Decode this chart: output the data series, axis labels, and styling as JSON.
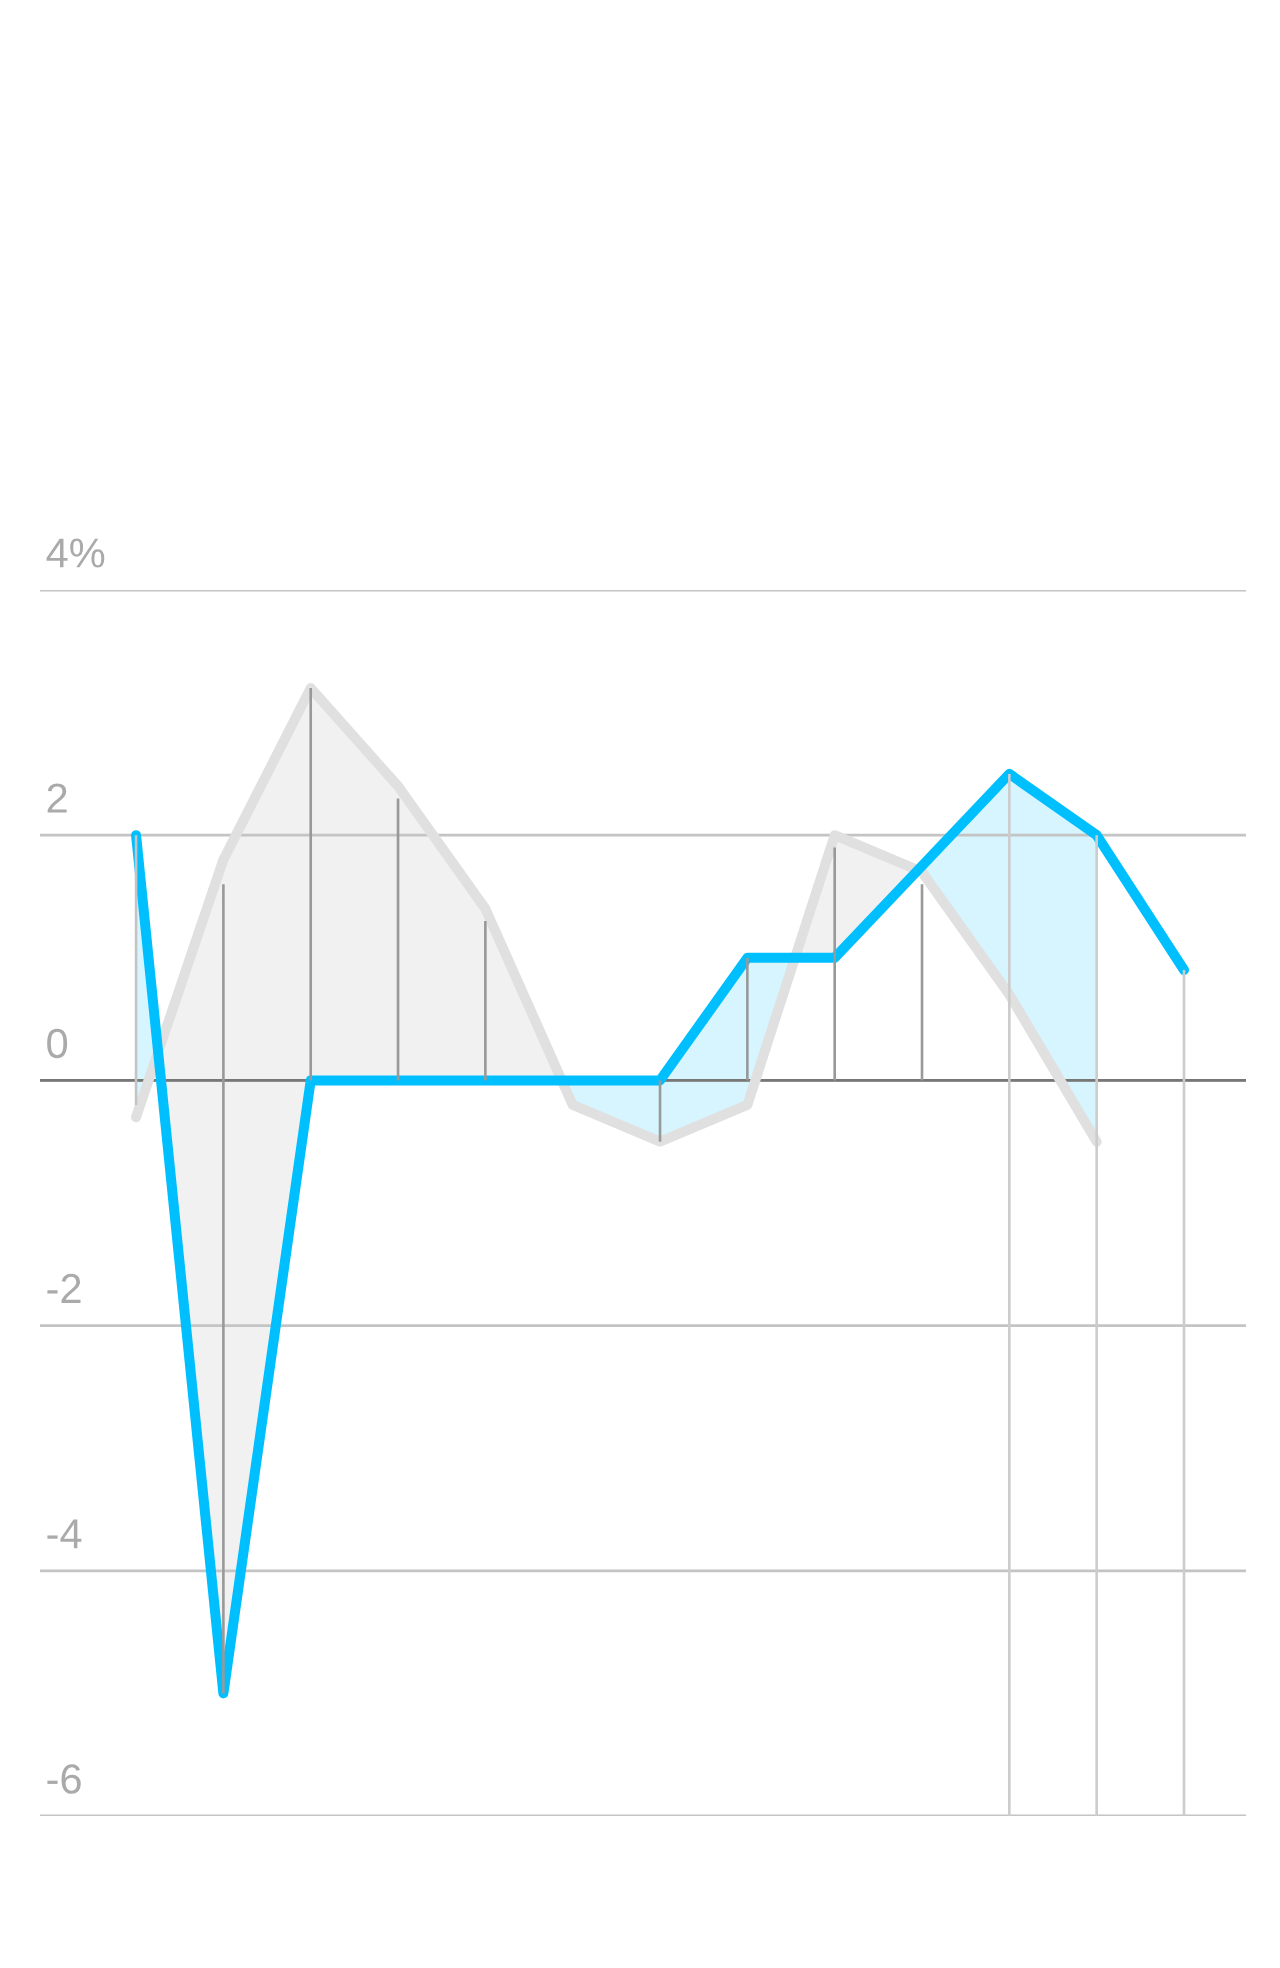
{
  "chart_data": {
    "type": "line",
    "categories": [
      null,
      null,
      null,
      null,
      null,
      null,
      null,
      null,
      null,
      null,
      null,
      null,
      null
    ],
    "ylim": [
      -6,
      4
    ],
    "yticks": [
      {
        "value": 4,
        "label": "4%"
      },
      2,
      0,
      -2,
      -4,
      -6
    ],
    "grid": "y",
    "ref_lines": [
      {
        "axis": "y",
        "value": 0,
        "color": "#777777"
      }
    ],
    "series": [
      {
        "type": "bar",
        "colors": [
          "#c4c4c4",
          "#999999",
          "#999999",
          "#999999",
          "#999999",
          "#999999",
          "#999999",
          "#999999",
          "#999999",
          "#999999",
          "#cccccc",
          "#cccccc",
          "#cccccc"
        ],
        "base": [
          -0.2,
          -5,
          0,
          0,
          0,
          null,
          -0.5,
          0,
          0,
          0,
          -6,
          -6,
          -6
        ],
        "values": [
          2.2,
          6.6,
          3.2,
          2.3,
          1.3,
          null,
          0.5,
          1,
          1.9,
          1.6,
          8.5,
          8,
          6.9
        ]
      },
      {
        "color": "#e0e0e0",
        "values": [
          -0.3,
          1.8,
          3.2,
          2.4,
          1.4,
          -0.2,
          -0.5,
          -0.2,
          2.0,
          1.7,
          0.7,
          -0.5,
          null
        ]
      },
      {
        "color": "#00bfff",
        "values": [
          2.0,
          -5.0,
          0,
          0,
          0,
          0,
          0,
          1.0,
          1.0,
          1.75,
          2.5,
          2.0,
          0.9
        ]
      }
    ]
  }
}
